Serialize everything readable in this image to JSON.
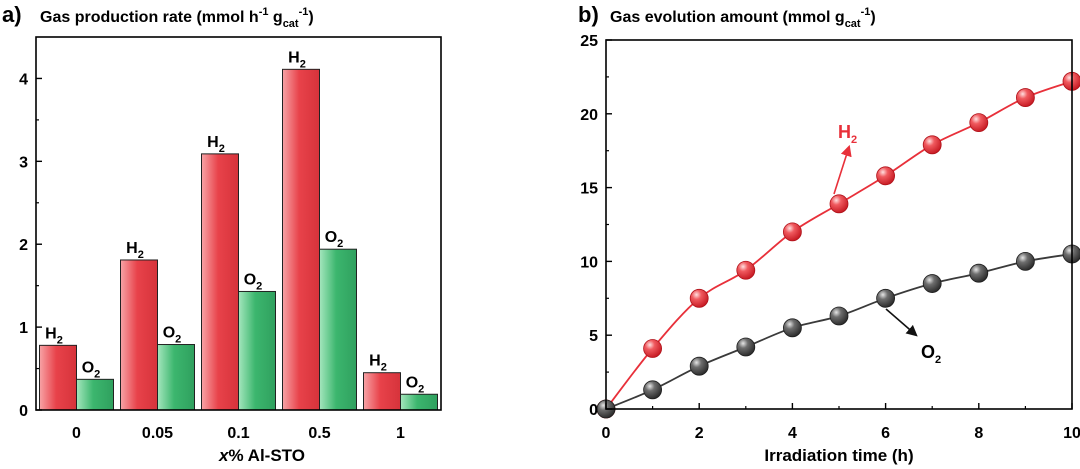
{
  "chart_data": [
    {
      "panel": "a)",
      "type": "bar",
      "title": "Gas production rate (mmol h",
      "title_sup1": "-1",
      "title_mid": " g",
      "title_sub": "cat",
      "title_sup2": "-1",
      "title_end": ")",
      "xlabel_italic": "x",
      "xlabel": "% Al-STO",
      "ylabel": "",
      "categories": [
        "0",
        "0.05",
        "0.1",
        "0.5",
        "1"
      ],
      "ylim": [
        0,
        4.5
      ],
      "yticks": [
        "0",
        "1",
        "2",
        "3",
        "4"
      ],
      "series": [
        {
          "name": "H2",
          "label_main": "H",
          "label_sub": "2",
          "color": "#e8424a",
          "values": [
            0.78,
            1.81,
            3.09,
            4.11,
            0.45
          ]
        },
        {
          "name": "O2",
          "label_main": "O",
          "label_sub": "2",
          "color": "#3cb66e",
          "values": [
            0.37,
            0.79,
            1.43,
            1.94,
            0.19
          ]
        }
      ]
    },
    {
      "panel": "b)",
      "type": "line",
      "title": "Gas evolution amount (mmol g",
      "title_sub": "cat",
      "title_sup": "-1",
      "title_end": ")",
      "xlabel": "Irradiation time (h)",
      "ylabel": "",
      "xlim": [
        0,
        10
      ],
      "ylim": [
        0,
        25
      ],
      "xticks": [
        "0",
        "2",
        "4",
        "6",
        "8",
        "10"
      ],
      "yticks": [
        "0",
        "5",
        "10",
        "15",
        "20",
        "25"
      ],
      "series": [
        {
          "name": "H2",
          "label_main": "H",
          "label_sub": "2",
          "color": "#e8303a",
          "x": [
            0,
            1,
            2,
            3,
            4,
            5,
            6,
            7,
            8,
            9,
            10
          ],
          "y": [
            0,
            4.1,
            7.5,
            9.4,
            12.0,
            13.9,
            15.8,
            17.9,
            19.4,
            21.1,
            22.2
          ]
        },
        {
          "name": "O2",
          "label_main": "O",
          "label_sub": "2",
          "color": "#3a3a3a",
          "x": [
            0,
            1,
            2,
            3,
            4,
            5,
            6,
            7,
            8,
            9,
            10
          ],
          "y": [
            0,
            1.3,
            2.9,
            4.2,
            5.5,
            6.3,
            7.5,
            8.5,
            9.2,
            10.0,
            10.5
          ]
        }
      ]
    }
  ]
}
